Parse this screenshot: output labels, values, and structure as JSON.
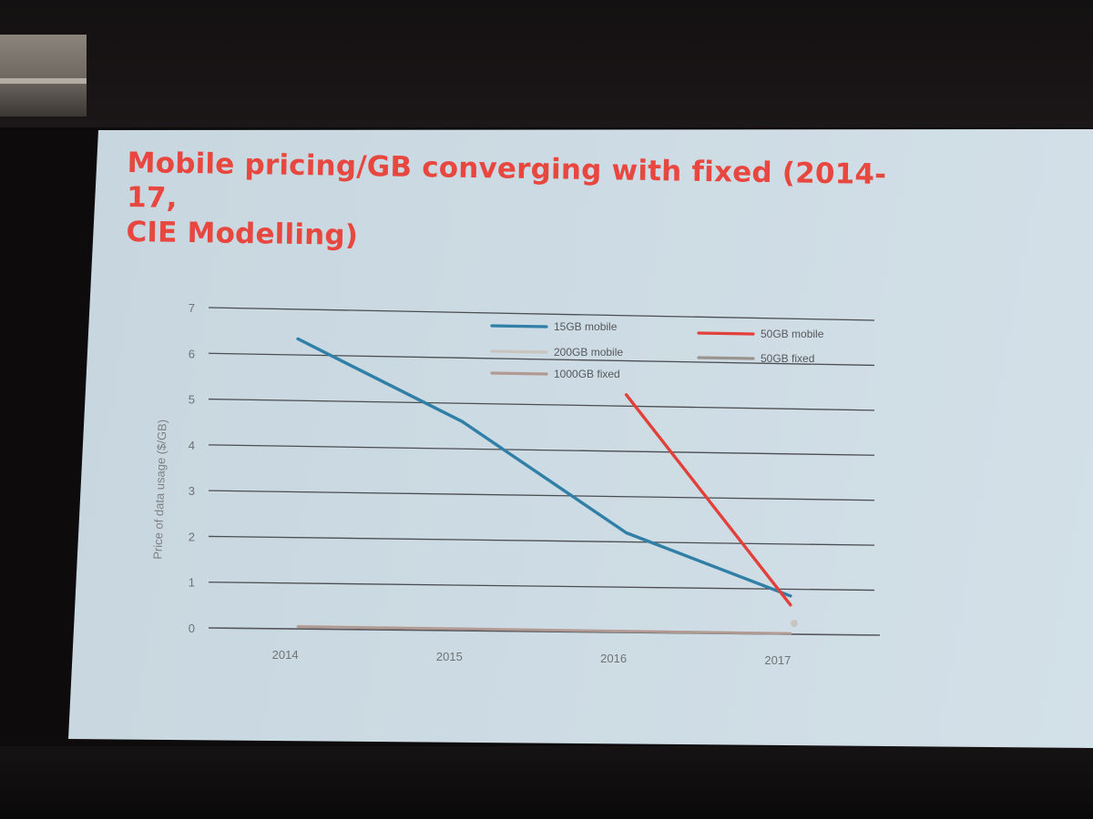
{
  "slide": {
    "title": "Mobile pricing/GB converging with fixed (2014-17,\nCIE Modelling)"
  },
  "chart_data": {
    "type": "line",
    "x": [
      "2014",
      "2015",
      "2016",
      "2017"
    ],
    "ylabel": "Price of data usage ($/GB)",
    "xlabel": "",
    "ylim": [
      0,
      7
    ],
    "yticks": [
      0,
      1,
      2,
      3,
      4,
      5,
      6,
      7
    ],
    "grid": true,
    "legend_position": "top-right",
    "series": [
      {
        "name": "15GB mobile",
        "color": "#2f7fa7",
        "values": [
          6.35,
          4.6,
          2.2,
          0.85
        ]
      },
      {
        "name": "50GB mobile",
        "color": "#e2403a",
        "values": [
          null,
          null,
          5.25,
          0.65
        ]
      },
      {
        "name": "200GB mobile",
        "color": "#c9c4bf",
        "values": [
          0.06,
          0.05,
          0.03,
          0.02
        ]
      },
      {
        "name": "50GB fixed",
        "color": "#9a948f",
        "values": [
          0.05,
          0.04,
          0.02,
          0.01
        ]
      },
      {
        "name": "1000GB fixed",
        "color": "#b29a92",
        "values": [
          0.04,
          0.04,
          0.03,
          0.02
        ]
      }
    ]
  }
}
